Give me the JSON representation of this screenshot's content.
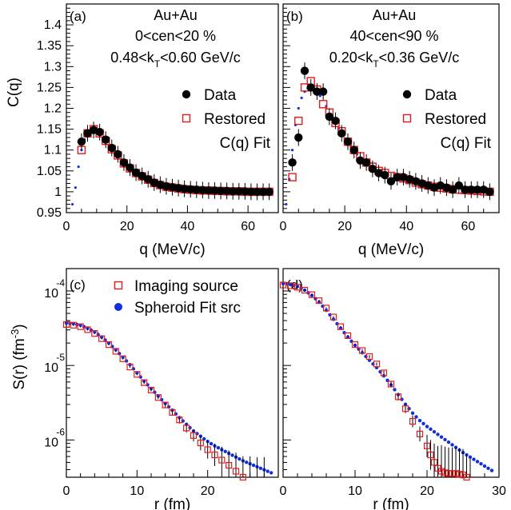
{
  "chart_data": [
    {
      "type": "scatter",
      "panel_label": "(a)",
      "annotations": [
        "Au+Au",
        "0<cen<20 %",
        "0.48<k",
        "T",
        "<0.60 GeV/c"
      ],
      "xlabel": "q (MeV/c)",
      "ylabel": "C(q)",
      "xlim": [
        0,
        70
      ],
      "ylim": [
        0.95,
        1.45
      ],
      "x_ticks": [
        "0",
        "20",
        "40",
        "60"
      ],
      "y_ticks": [
        "0.95",
        "1",
        "1.05",
        "1.1",
        "1.15",
        "1.2",
        "1.25",
        "1.3",
        "1.35",
        "1.4"
      ],
      "legend": [
        "Data",
        "Restored",
        "C(q) Fit"
      ],
      "series": [
        {
          "name": "Data",
          "x": [
            5,
            7,
            9,
            11,
            13,
            15,
            17,
            19,
            21,
            23,
            25,
            27,
            29,
            31,
            33,
            35,
            37,
            39,
            41,
            43,
            45,
            47,
            49,
            51,
            53,
            55,
            57,
            59,
            61,
            63,
            65,
            67
          ],
          "y": [
            1.12,
            1.14,
            1.148,
            1.143,
            1.125,
            1.105,
            1.09,
            1.07,
            1.058,
            1.046,
            1.038,
            1.03,
            1.022,
            1.017,
            1.013,
            1.011,
            1.009,
            1.007,
            1.006,
            1.005,
            1.004,
            1.003,
            1.003,
            1.002,
            1.002,
            1.001,
            1.001,
            1.001,
            1.0,
            1.0,
            1.0,
            1.0
          ]
        },
        {
          "name": "Restored",
          "x": [
            5,
            7,
            9,
            11,
            13,
            15,
            17,
            19,
            21,
            23,
            25,
            27,
            29,
            31,
            33,
            35,
            37,
            39,
            41,
            43,
            45,
            47,
            49,
            51,
            53,
            55,
            57,
            59,
            61,
            63,
            65,
            67
          ],
          "y": [
            1.1,
            1.14,
            1.15,
            1.14,
            1.122,
            1.102,
            1.087,
            1.068,
            1.056,
            1.045,
            1.037,
            1.029,
            1.021,
            1.016,
            1.012,
            1.01,
            1.008,
            1.006,
            1.005,
            1.004,
            1.003,
            1.003,
            1.002,
            1.002,
            1.001,
            1.001,
            1.001,
            1.0,
            1.0,
            1.0,
            1.0,
            1.0
          ]
        },
        {
          "name": "C(q) Fit",
          "x": [
            2,
            3,
            4,
            5,
            6,
            7,
            8,
            9,
            10,
            12,
            14,
            16,
            18,
            20,
            22,
            24,
            26,
            28,
            30,
            33,
            36,
            40,
            45,
            50,
            55,
            60,
            65,
            68
          ],
          "y": [
            0.97,
            1.01,
            1.06,
            1.1,
            1.125,
            1.14,
            1.148,
            1.148,
            1.145,
            1.13,
            1.112,
            1.095,
            1.078,
            1.063,
            1.051,
            1.041,
            1.033,
            1.026,
            1.021,
            1.015,
            1.011,
            1.007,
            1.004,
            1.002,
            1.001,
            1.001,
            1.0,
            1.0
          ]
        }
      ]
    },
    {
      "type": "scatter",
      "panel_label": "(b)",
      "annotations": [
        "Au+Au",
        "40<cen<90 %",
        "0.20<k",
        "T",
        "<0.36 GeV/c"
      ],
      "xlabel": "q (MeV/c)",
      "xlim": [
        0,
        70
      ],
      "ylim": [
        0.95,
        1.45
      ],
      "x_ticks": [
        "0",
        "20",
        "40",
        "60"
      ],
      "legend": [
        "Data",
        "Restored",
        "C(q) Fit"
      ],
      "series": [
        {
          "name": "Data",
          "x": [
            3,
            5,
            7,
            9,
            11,
            13,
            15,
            17,
            19,
            21,
            23,
            25,
            27,
            29,
            31,
            33,
            35,
            37,
            39,
            41,
            43,
            45,
            47,
            49,
            51,
            53,
            55,
            57,
            59,
            61,
            63,
            65,
            67
          ],
          "y": [
            1.07,
            1.13,
            1.29,
            1.25,
            1.24,
            1.24,
            1.18,
            1.17,
            1.14,
            1.12,
            1.1,
            1.075,
            1.07,
            1.055,
            1.045,
            1.04,
            1.025,
            1.035,
            1.035,
            1.03,
            1.025,
            1.02,
            1.015,
            1.01,
            1.015,
            1.01,
            1.005,
            1.015,
            1.005,
            1.005,
            1.005,
            1.005,
            1.0
          ]
        },
        {
          "name": "Restored",
          "x": [
            3,
            5,
            7,
            9,
            11,
            13,
            15,
            17,
            19,
            21,
            23,
            25,
            27,
            29,
            31,
            33,
            35,
            37,
            39,
            41,
            43,
            45,
            47,
            49,
            51,
            53,
            55,
            57,
            59,
            61,
            63,
            65,
            67
          ],
          "y": [
            1.035,
            1.17,
            1.25,
            1.265,
            1.245,
            1.21,
            1.19,
            1.165,
            1.145,
            1.12,
            1.1,
            1.085,
            1.07,
            1.06,
            1.05,
            1.045,
            1.038,
            1.035,
            1.032,
            1.028,
            1.022,
            1.018,
            1.015,
            1.012,
            1.01,
            1.008,
            1.006,
            1.005,
            1.004,
            1.003,
            1.002,
            1.001,
            1.0
          ]
        },
        {
          "name": "C(q) Fit",
          "x": [
            1,
            2,
            3,
            4,
            5,
            6,
            7,
            8,
            9,
            10,
            12,
            14,
            16,
            18,
            20,
            22,
            24,
            26,
            28,
            30,
            33,
            36,
            40,
            45,
            50,
            55,
            60,
            65,
            68
          ],
          "y": [
            0.97,
            1.03,
            1.1,
            1.16,
            1.2,
            1.225,
            1.24,
            1.248,
            1.25,
            1.246,
            1.23,
            1.205,
            1.178,
            1.152,
            1.128,
            1.108,
            1.09,
            1.075,
            1.063,
            1.052,
            1.04,
            1.031,
            1.022,
            1.014,
            1.009,
            1.005,
            1.003,
            1.001,
            1.0
          ]
        }
      ]
    },
    {
      "type": "scatter",
      "panel_label": "(c)",
      "xlabel": "r (fm)",
      "ylabel": "S(r) (fm^-3)",
      "ylabel_parts": [
        "S(r) (fm",
        "-3",
        ")"
      ],
      "y_scale": "log",
      "xlim": [
        0,
        30
      ],
      "ylim_log10": [
        -6.5,
        -3.7
      ],
      "x_ticks": [
        "0",
        "10",
        "20"
      ],
      "y_ticks": [
        {
          "base": "10",
          "exp": "-4"
        },
        {
          "base": "10",
          "exp": "-5"
        },
        {
          "base": "10",
          "exp": "-6"
        }
      ],
      "legend": [
        "Imaging source",
        "Spheroid Fit src"
      ],
      "series": [
        {
          "name": "Imaging source",
          "x": [
            0,
            1,
            2,
            3,
            4,
            5,
            6,
            7,
            8,
            9,
            10,
            11,
            12,
            13,
            14,
            15,
            16,
            17,
            18,
            19,
            20,
            21,
            22,
            23,
            24,
            25,
            26,
            27,
            28
          ],
          "log10_y": [
            -4.45,
            -4.46,
            -4.48,
            -4.52,
            -4.57,
            -4.64,
            -4.72,
            -4.81,
            -4.91,
            -5.02,
            -5.12,
            -5.23,
            -5.33,
            -5.43,
            -5.53,
            -5.63,
            -5.73,
            -5.84,
            -5.94,
            -6.04,
            -6.13,
            -6.2,
            -6.27,
            -6.34,
            -6.42,
            -6.5,
            -6.52,
            -6.55,
            -6.58
          ],
          "log10_err": [
            0.01,
            0.01,
            0.01,
            0.01,
            0.01,
            0.01,
            0.01,
            0.01,
            0.01,
            0.01,
            0.01,
            0.02,
            0.02,
            0.02,
            0.03,
            0.04,
            0.05,
            0.06,
            0.08,
            0.1,
            0.12,
            0.15,
            0.18,
            0.2,
            0.25,
            0.28,
            0.3,
            0.32,
            0.35
          ]
        },
        {
          "name": "Spheroid Fit src",
          "x": [
            0,
            1,
            2,
            3,
            4,
            5,
            6,
            7,
            8,
            9,
            10,
            11,
            12,
            13,
            14,
            15,
            16,
            17,
            18,
            19,
            20,
            21,
            22,
            23,
            24,
            25,
            26,
            27,
            28,
            29
          ],
          "log10_y": [
            -4.43,
            -4.44,
            -4.46,
            -4.5,
            -4.55,
            -4.62,
            -4.7,
            -4.79,
            -4.89,
            -4.99,
            -5.1,
            -5.21,
            -5.31,
            -5.41,
            -5.51,
            -5.6,
            -5.7,
            -5.79,
            -5.88,
            -5.95,
            -6.02,
            -6.08,
            -6.13,
            -6.18,
            -6.23,
            -6.28,
            -6.32,
            -6.36,
            -6.4,
            -6.44
          ]
        }
      ]
    },
    {
      "type": "scatter",
      "panel_label": "(d)",
      "xlabel": "r (fm)",
      "y_scale": "log",
      "xlim": [
        0,
        30
      ],
      "ylim_log10": [
        -6.5,
        -3.7
      ],
      "x_ticks": [
        "0",
        "10",
        "20",
        "30"
      ],
      "series": [
        {
          "name": "Imaging source",
          "x": [
            0,
            1,
            2,
            3,
            4,
            5,
            6,
            7,
            8,
            9,
            10,
            11,
            12,
            13,
            14,
            15,
            16,
            17,
            18,
            19,
            20,
            20.5,
            21,
            21.5,
            22,
            22.5,
            23,
            23.5,
            24,
            24.5,
            25,
            25.5,
            26
          ],
          "log10_y": [
            -3.92,
            -3.93,
            -3.95,
            -3.99,
            -4.05,
            -4.13,
            -4.23,
            -4.35,
            -4.48,
            -4.6,
            -4.72,
            -4.8,
            -4.88,
            -4.98,
            -5.1,
            -5.25,
            -5.42,
            -5.58,
            -5.75,
            -5.92,
            -6.08,
            -6.2,
            -6.3,
            -6.38,
            -6.42,
            -6.44,
            -6.45,
            -6.45,
            -6.45,
            -6.46,
            -6.47,
            -6.5,
            -6.55
          ],
          "log10_err": [
            0.01,
            0.01,
            0.01,
            0.01,
            0.01,
            0.01,
            0.01,
            0.01,
            0.01,
            0.01,
            0.01,
            0.02,
            0.02,
            0.02,
            0.03,
            0.04,
            0.05,
            0.06,
            0.08,
            0.1,
            0.15,
            0.2,
            0.25,
            0.3,
            0.35,
            0.35,
            0.35,
            0.35,
            0.35,
            0.35,
            0.35,
            0.3,
            0.3
          ]
        },
        {
          "name": "Spheroid Fit src",
          "x": [
            0,
            1,
            2,
            3,
            4,
            5,
            6,
            7,
            8,
            9,
            10,
            11,
            12,
            13,
            14,
            15,
            16,
            17,
            18,
            19,
            20,
            21,
            22,
            23,
            24,
            25,
            26,
            27,
            28,
            29
          ],
          "log10_y": [
            -3.9,
            -3.91,
            -3.94,
            -3.99,
            -4.06,
            -4.15,
            -4.26,
            -4.38,
            -4.5,
            -4.62,
            -4.73,
            -4.83,
            -4.93,
            -5.03,
            -5.14,
            -5.26,
            -5.39,
            -5.52,
            -5.64,
            -5.74,
            -5.82,
            -5.89,
            -5.96,
            -6.03,
            -6.1,
            -6.17,
            -6.23,
            -6.29,
            -6.35,
            -6.41
          ]
        }
      ]
    }
  ]
}
